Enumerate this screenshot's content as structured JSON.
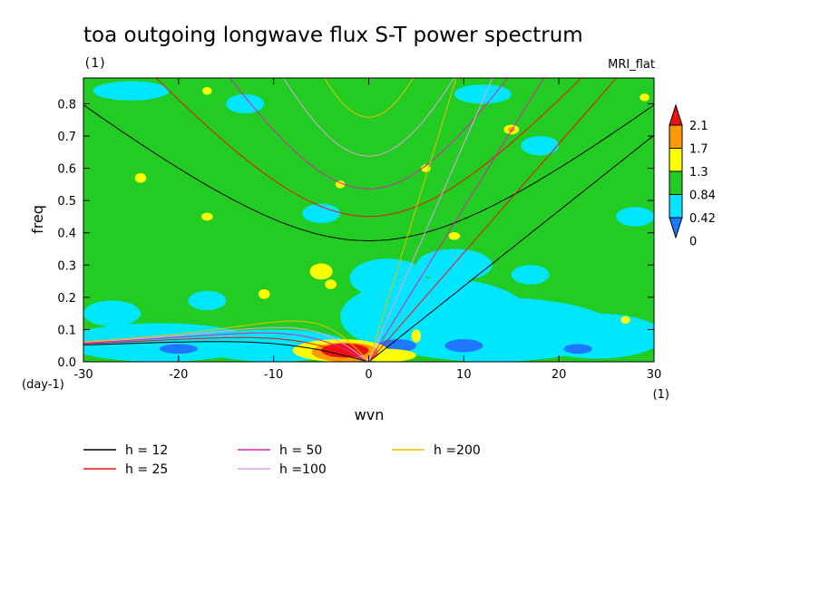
{
  "chart_data": {
    "type": "heatmap",
    "title": "toa outgoing longwave flux S-T power spectrum",
    "subtitle": "(1)",
    "model": "MRI_flat",
    "xlabel": "wvn",
    "ylabel": "freq",
    "x_unit": "(1)",
    "y_unit": "(day-1)",
    "xlim": [
      -30,
      30
    ],
    "ylim": [
      0,
      0.88
    ],
    "x_ticks": [
      -30,
      -20,
      -10,
      0,
      10,
      20,
      30
    ],
    "x_tick_labels": [
      "-30",
      "-20",
      "-10",
      "0",
      "10",
      "20",
      "30"
    ],
    "y_ticks": [
      0.0,
      0.1,
      0.2,
      0.3,
      0.4,
      0.5,
      0.6,
      0.7,
      0.8
    ],
    "y_tick_labels": [
      "0.0",
      "0.1",
      "0.2",
      "0.3",
      "0.4",
      "0.5",
      "0.6",
      "0.7",
      "0.8"
    ],
    "colorbar": {
      "levels": [
        "0",
        "0.42",
        "0.84",
        "1.3",
        "1.7",
        "2.1"
      ],
      "colors": [
        "#1e78ff",
        "#00e6ff",
        "#22cc22",
        "#ffff00",
        "#ff9900",
        "#ee1111"
      ],
      "extend": "both"
    },
    "background_color": "#22cc22",
    "patches": [
      {
        "level": 1,
        "shape": "ellipse",
        "x": 7,
        "y": 0.14,
        "rx": 10,
        "ry": 0.12
      },
      {
        "level": 1,
        "shape": "ellipse",
        "x": 13,
        "y": 0.1,
        "rx": 13,
        "ry": 0.1
      },
      {
        "level": 1,
        "shape": "ellipse",
        "x": -22,
        "y": 0.06,
        "rx": 10,
        "ry": 0.06
      },
      {
        "level": 1,
        "shape": "ellipse",
        "x": -10,
        "y": 0.05,
        "rx": 8,
        "ry": 0.05
      },
      {
        "level": 1,
        "shape": "ellipse",
        "x": 24,
        "y": 0.08,
        "rx": 7,
        "ry": 0.07
      },
      {
        "level": 1,
        "shape": "ellipse",
        "x": 2,
        "y": 0.26,
        "rx": 4,
        "ry": 0.06
      },
      {
        "level": 1,
        "shape": "ellipse",
        "x": 9,
        "y": 0.3,
        "rx": 4,
        "ry": 0.05
      },
      {
        "level": 1,
        "shape": "ellipse",
        "x": -27,
        "y": 0.15,
        "rx": 3,
        "ry": 0.04
      },
      {
        "level": 1,
        "shape": "ellipse",
        "x": -17,
        "y": 0.19,
        "rx": 2,
        "ry": 0.03
      },
      {
        "level": 1,
        "shape": "ellipse",
        "x": 17,
        "y": 0.27,
        "rx": 2,
        "ry": 0.03
      },
      {
        "level": 1,
        "shape": "ellipse",
        "x": -25,
        "y": 0.84,
        "rx": 4,
        "ry": 0.03
      },
      {
        "level": 1,
        "shape": "ellipse",
        "x": -13,
        "y": 0.8,
        "rx": 2,
        "ry": 0.03
      },
      {
        "level": 1,
        "shape": "ellipse",
        "x": 12,
        "y": 0.83,
        "rx": 3,
        "ry": 0.03
      },
      {
        "level": 1,
        "shape": "ellipse",
        "x": 18,
        "y": 0.67,
        "rx": 2,
        "ry": 0.03
      },
      {
        "level": 1,
        "shape": "ellipse",
        "x": -5,
        "y": 0.46,
        "rx": 2,
        "ry": 0.03
      },
      {
        "level": 1,
        "shape": "ellipse",
        "x": 28,
        "y": 0.45,
        "rx": 2,
        "ry": 0.03
      },
      {
        "level": 0,
        "shape": "ellipse",
        "x": 10,
        "y": 0.05,
        "rx": 2,
        "ry": 0.02
      },
      {
        "level": 0,
        "shape": "ellipse",
        "x": 3,
        "y": 0.05,
        "rx": 2,
        "ry": 0.02
      },
      {
        "level": 0,
        "shape": "ellipse",
        "x": -20,
        "y": 0.04,
        "rx": 2,
        "ry": 0.015
      },
      {
        "level": 0,
        "shape": "ellipse",
        "x": 22,
        "y": 0.04,
        "rx": 1.5,
        "ry": 0.015
      },
      {
        "level": 3,
        "shape": "ellipse",
        "x": -3,
        "y": 0.035,
        "rx": 5,
        "ry": 0.035
      },
      {
        "level": 3,
        "shape": "ellipse",
        "x": 2,
        "y": 0.02,
        "rx": 3,
        "ry": 0.02
      },
      {
        "level": 4,
        "shape": "ellipse",
        "x": -2.5,
        "y": 0.03,
        "rx": 3.5,
        "ry": 0.03
      },
      {
        "level": 5,
        "shape": "ellipse",
        "x": -2.5,
        "y": 0.035,
        "rx": 2.5,
        "ry": 0.022
      },
      {
        "level": 3,
        "shape": "ellipse",
        "x": 5,
        "y": 0.08,
        "rx": 0.5,
        "ry": 0.02
      },
      {
        "level": 3,
        "shape": "ellipse",
        "x": -5,
        "y": 0.28,
        "rx": 1.2,
        "ry": 0.025
      },
      {
        "level": 3,
        "shape": "ellipse",
        "x": -4,
        "y": 0.24,
        "rx": 0.6,
        "ry": 0.015
      },
      {
        "level": 3,
        "shape": "ellipse",
        "x": -11,
        "y": 0.21,
        "rx": 0.6,
        "ry": 0.015
      },
      {
        "level": 3,
        "shape": "ellipse",
        "x": -24,
        "y": 0.57,
        "rx": 0.6,
        "ry": 0.015
      },
      {
        "level": 3,
        "shape": "ellipse",
        "x": -17,
        "y": 0.45,
        "rx": 0.6,
        "ry": 0.012
      },
      {
        "level": 3,
        "shape": "ellipse",
        "x": -17,
        "y": 0.84,
        "rx": 0.5,
        "ry": 0.012
      },
      {
        "level": 3,
        "shape": "ellipse",
        "x": 15,
        "y": 0.72,
        "rx": 0.8,
        "ry": 0.015
      },
      {
        "level": 3,
        "shape": "ellipse",
        "x": -3,
        "y": 0.55,
        "rx": 0.5,
        "ry": 0.012
      },
      {
        "level": 3,
        "shape": "ellipse",
        "x": 6,
        "y": 0.6,
        "rx": 0.5,
        "ry": 0.012
      },
      {
        "level": 3,
        "shape": "ellipse",
        "x": 9,
        "y": 0.39,
        "rx": 0.6,
        "ry": 0.012
      },
      {
        "level": 3,
        "shape": "ellipse",
        "x": 27,
        "y": 0.13,
        "rx": 0.5,
        "ry": 0.012
      },
      {
        "level": 3,
        "shape": "ellipse",
        "x": 29,
        "y": 0.82,
        "rx": 0.5,
        "ry": 0.012
      },
      {
        "level": 4,
        "shape": "ellipse",
        "x": 15,
        "y": 0.72,
        "rx": 0.35,
        "ry": 0.008
      }
    ],
    "series": [
      {
        "name": "h = 12",
        "color": "#000000",
        "equivalent_depth_m": 12
      },
      {
        "name": "h = 25",
        "color": "#ee1111",
        "equivalent_depth_m": 25
      },
      {
        "name": "h = 50",
        "color": "#dd22aa",
        "equivalent_depth_m": 50
      },
      {
        "name": "h =100",
        "color": "#e6a0e6",
        "equivalent_depth_m": 100
      },
      {
        "name": "h =200",
        "color": "#e6c000",
        "equivalent_depth_m": 200
      }
    ],
    "legend_position": "bottom"
  }
}
